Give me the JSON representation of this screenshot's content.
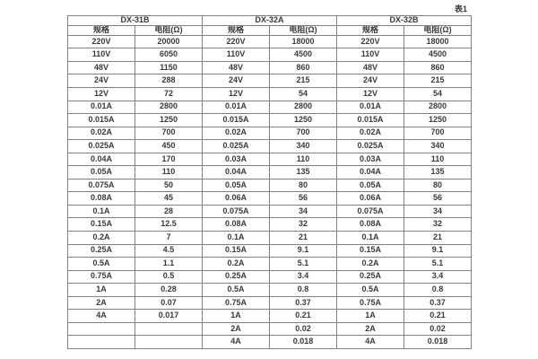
{
  "caption": "表1",
  "table": {
    "groups": [
      "DX-31B",
      "DX-32A",
      "DX-32B"
    ],
    "col_headers": [
      "规格",
      "电阻(Ω)",
      "规格",
      "电阻(Ω)",
      "规格",
      "电阻(Ω)"
    ],
    "rows": [
      [
        "220V",
        "20000",
        "220V",
        "18000",
        "220V",
        "18000"
      ],
      [
        "110V",
        "6050",
        "110V",
        "4500",
        "110V",
        "4500"
      ],
      [
        "48V",
        "1150",
        "48V",
        "860",
        "48V",
        "860"
      ],
      [
        "24V",
        "288",
        "24V",
        "215",
        "24V",
        "215"
      ],
      [
        "12V",
        "72",
        "12V",
        "54",
        "12V",
        "54"
      ],
      [
        "0.01A",
        "2800",
        "0.01A",
        "2800",
        "0.01A",
        "2800"
      ],
      [
        "0.015A",
        "1250",
        "0.015A",
        "1250",
        "0.015A",
        "1250"
      ],
      [
        "0.02A",
        "700",
        "0.02A",
        "700",
        "0.02A",
        "700"
      ],
      [
        "0.025A",
        "450",
        "0.025A",
        "340",
        "0.025A",
        "340"
      ],
      [
        "0.04A",
        "170",
        "0.03A",
        "110",
        "0.03A",
        "110"
      ],
      [
        "0.05A",
        "110",
        "0.04A",
        "135",
        "0.04A",
        "135"
      ],
      [
        "0.075A",
        "50",
        "0.05A",
        "80",
        "0.05A",
        "80"
      ],
      [
        "0.08A",
        "45",
        "0.06A",
        "56",
        "0.06A",
        "56"
      ],
      [
        "0.1A",
        "28",
        "0.075A",
        "34",
        "0.075A",
        "34"
      ],
      [
        "0.15A",
        "12.5",
        "0.08A",
        "32",
        "0.08A",
        "32"
      ],
      [
        "0.2A",
        "7",
        "0.1A",
        "21",
        "0.1A",
        "21"
      ],
      [
        "0.25A",
        "4.5",
        "0.15A",
        "9.1",
        "0.15A",
        "9.1"
      ],
      [
        "0.5A",
        "1.1",
        "0.2A",
        "5.1",
        "0.2A",
        "5.1"
      ],
      [
        "0.75A",
        "0.5",
        "0.25A",
        "3.4",
        "0.25A",
        "3.4"
      ],
      [
        "1A",
        "0.28",
        "0.5A",
        "0.8",
        "0.5A",
        "0.8"
      ],
      [
        "2A",
        "0.07",
        "0.75A",
        "0.37",
        "0.75A",
        "0.37"
      ],
      [
        "4A",
        "0.017",
        "1A",
        "0.21",
        "1A",
        "0.21"
      ],
      [
        "",
        "",
        "2A",
        "0.02",
        "2A",
        "0.02"
      ],
      [
        "",
        "",
        "4A",
        "0.018",
        "4A",
        "0.018"
      ]
    ],
    "colors": {
      "border": "#808080",
      "text": "#3a3a3a",
      "background": "#ffffff"
    }
  }
}
